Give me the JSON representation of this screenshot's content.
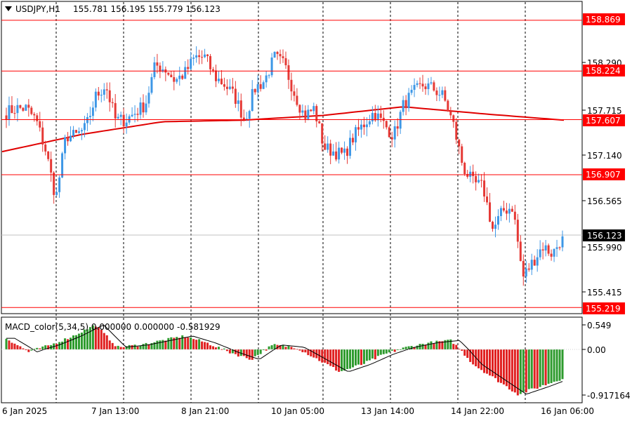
{
  "header": {
    "symbol_timeframe": "USDJPY,H1",
    "ohlc": "155.781 156.195 155.779 156.123"
  },
  "price_axis": {
    "ticks": [
      "158.290",
      "157.715",
      "157.140",
      "156.565",
      "155.990",
      "155.415"
    ],
    "current_price": "156.123"
  },
  "horizontal_levels": [
    "158.869",
    "158.224",
    "157.607",
    "156.907",
    "155.219"
  ],
  "indicator": {
    "label": "MACD_color(5,34,5) 0.000000 0.000000 -0.581929",
    "ticks": [
      "0.549",
      "0.00",
      "-0.917164"
    ]
  },
  "time_axis": {
    "labels": [
      "6 Jan 2025",
      "7 Jan 13:00",
      "8 Jan 21:00",
      "10 Jan 05:00",
      "13 Jan 14:00",
      "14 Jan 22:00",
      "16 Jan 06:00"
    ]
  },
  "colors": {
    "bull": "#3d97e6",
    "bear": "#e53935",
    "level_line": "#ff0000",
    "ma_line": "#e00000",
    "hist_up": "#2e9b2e",
    "hist_down": "#e02020"
  },
  "chart_data": {
    "type": "candlestick",
    "instrument": "USDJPY",
    "timeframe": "H1",
    "price_range": [
      155.15,
      159.1
    ],
    "price_key_points": [
      157.7,
      157.75,
      157.75,
      157.6,
      157.2,
      156.6,
      157.4,
      157.4,
      157.5,
      157.9,
      158.05,
      157.6,
      157.6,
      157.7,
      157.8,
      158.3,
      158.25,
      158.1,
      158.2,
      158.4,
      158.4,
      158.15,
      158.05,
      157.9,
      157.6,
      158.0,
      158.1,
      158.4,
      158.3,
      157.95,
      157.65,
      157.75,
      157.25,
      157.2,
      157.15,
      157.4,
      157.55,
      157.7,
      157.55,
      157.4,
      157.8,
      157.95,
      158.05,
      158.0,
      157.9,
      157.55,
      157.0,
      156.8,
      156.75,
      156.2,
      156.45,
      156.5,
      155.6,
      155.8,
      156.0,
      155.9,
      156.123
    ],
    "moving_average_key_points": [
      157.2,
      157.42,
      157.58,
      157.6,
      157.66,
      157.77,
      157.68,
      157.6
    ],
    "macd": {
      "values": [
        0.25,
        -0.05,
        0.1,
        0.3,
        0.55,
        0.05,
        0.1,
        0.2,
        0.3,
        0.15,
        -0.05,
        -0.2,
        0.1,
        0.05,
        -0.2,
        -0.45,
        -0.3,
        -0.1,
        0.05,
        0.15,
        0.2,
        -0.3,
        -0.6,
        -0.9,
        -0.75,
        -0.58
      ],
      "range": [
        -0.917164,
        0.549
      ]
    }
  }
}
